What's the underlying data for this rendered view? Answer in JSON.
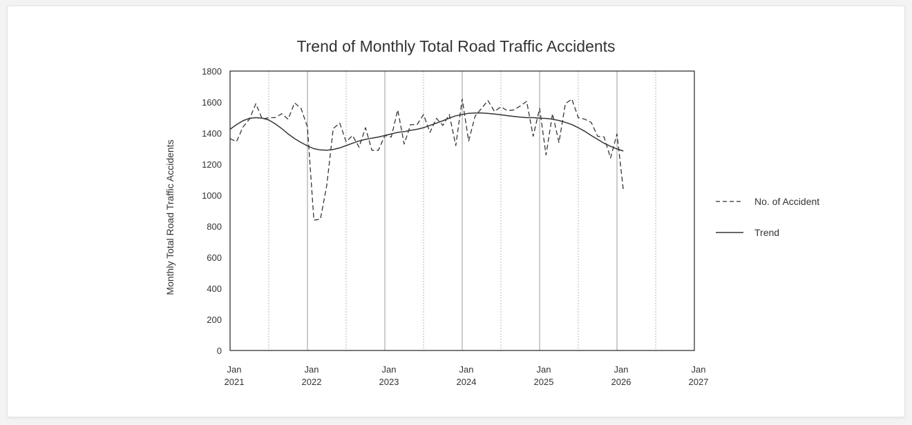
{
  "chart_data": {
    "type": "line",
    "title": "Trend of Monthly Total Road Traffic Accidents",
    "ylabel": "Monthly Total Road Traffic Accidents",
    "xlabel": "",
    "ylim": [
      0,
      1800
    ],
    "y_ticks": [
      0,
      200,
      400,
      600,
      800,
      1000,
      1200,
      1400,
      1600,
      1800
    ],
    "x_ticks": [
      {
        "month": "Jan",
        "year": "2021"
      },
      {
        "month": "Jan",
        "year": "2022"
      },
      {
        "month": "Jan",
        "year": "2023"
      },
      {
        "month": "Jan",
        "year": "2024"
      },
      {
        "month": "Jan",
        "year": "2025"
      },
      {
        "month": "Jan",
        "year": "2026"
      },
      {
        "month": "Jan",
        "year": "2027"
      }
    ],
    "xlim": [
      "2021-01",
      "2027-01"
    ],
    "grid": "vertical lines: solid at January, dotted at July",
    "legend_position": "right",
    "series": [
      {
        "name": "No. of Accident",
        "style": "dashed",
        "color": "#333333",
        "x": [
          "2021-01",
          "2021-02",
          "2021-03",
          "2021-04",
          "2021-05",
          "2021-06",
          "2021-07",
          "2021-08",
          "2021-09",
          "2021-10",
          "2021-11",
          "2021-12",
          "2022-01",
          "2022-02",
          "2022-03",
          "2022-04",
          "2022-05",
          "2022-06",
          "2022-07",
          "2022-08",
          "2022-09",
          "2022-10",
          "2022-11",
          "2022-12",
          "2023-01",
          "2023-02",
          "2023-03",
          "2023-04",
          "2023-05",
          "2023-06",
          "2023-07",
          "2023-08",
          "2023-09",
          "2023-10",
          "2023-11",
          "2023-12",
          "2024-01",
          "2024-02",
          "2024-03",
          "2024-04",
          "2024-05",
          "2024-06",
          "2024-07",
          "2024-08",
          "2024-09",
          "2024-10",
          "2024-11",
          "2024-12",
          "2025-01",
          "2025-02",
          "2025-03",
          "2025-04",
          "2025-05",
          "2025-06",
          "2025-07",
          "2025-08",
          "2025-09",
          "2025-10",
          "2025-11",
          "2025-12",
          "2026-01",
          "2026-02"
        ],
        "values": [
          1365,
          1345,
          1440,
          1490,
          1590,
          1490,
          1500,
          1500,
          1525,
          1490,
          1595,
          1560,
          1440,
          840,
          845,
          1065,
          1430,
          1465,
          1345,
          1385,
          1310,
          1435,
          1290,
          1290,
          1385,
          1375,
          1550,
          1330,
          1455,
          1455,
          1520,
          1405,
          1495,
          1450,
          1520,
          1320,
          1620,
          1350,
          1510,
          1560,
          1610,
          1540,
          1570,
          1545,
          1550,
          1575,
          1605,
          1380,
          1560,
          1260,
          1525,
          1340,
          1590,
          1620,
          1500,
          1490,
          1470,
          1380,
          1375,
          1240,
          1395,
          1030
        ]
      },
      {
        "name": "Trend",
        "style": "solid",
        "color": "#333333",
        "x": [
          "2021-01",
          "2021-02",
          "2021-03",
          "2021-04",
          "2021-05",
          "2021-06",
          "2021-07",
          "2021-08",
          "2021-09",
          "2021-10",
          "2021-11",
          "2021-12",
          "2022-01",
          "2022-02",
          "2022-03",
          "2022-04",
          "2022-05",
          "2022-06",
          "2022-07",
          "2022-08",
          "2022-09",
          "2022-10",
          "2022-11",
          "2022-12",
          "2023-01",
          "2023-02",
          "2023-03",
          "2023-04",
          "2023-05",
          "2023-06",
          "2023-07",
          "2023-08",
          "2023-09",
          "2023-10",
          "2023-11",
          "2023-12",
          "2024-01",
          "2024-02",
          "2024-03",
          "2024-04",
          "2024-05",
          "2024-06",
          "2024-07",
          "2024-08",
          "2024-09",
          "2024-10",
          "2024-11",
          "2024-12",
          "2025-01",
          "2025-02",
          "2025-03",
          "2025-04",
          "2025-05",
          "2025-06",
          "2025-07",
          "2025-08",
          "2025-09",
          "2025-10",
          "2025-11",
          "2025-12",
          "2026-01",
          "2026-02"
        ],
        "values": [
          1425,
          1455,
          1480,
          1495,
          1500,
          1497,
          1485,
          1460,
          1430,
          1395,
          1365,
          1340,
          1318,
          1300,
          1292,
          1290,
          1295,
          1305,
          1320,
          1335,
          1350,
          1360,
          1368,
          1375,
          1385,
          1395,
          1405,
          1410,
          1418,
          1425,
          1435,
          1450,
          1465,
          1480,
          1497,
          1512,
          1520,
          1528,
          1530,
          1530,
          1527,
          1523,
          1518,
          1513,
          1508,
          1503,
          1500,
          1500,
          1497,
          1495,
          1490,
          1482,
          1470,
          1455,
          1435,
          1412,
          1385,
          1360,
          1335,
          1315,
          1298,
          1285
        ]
      }
    ]
  }
}
